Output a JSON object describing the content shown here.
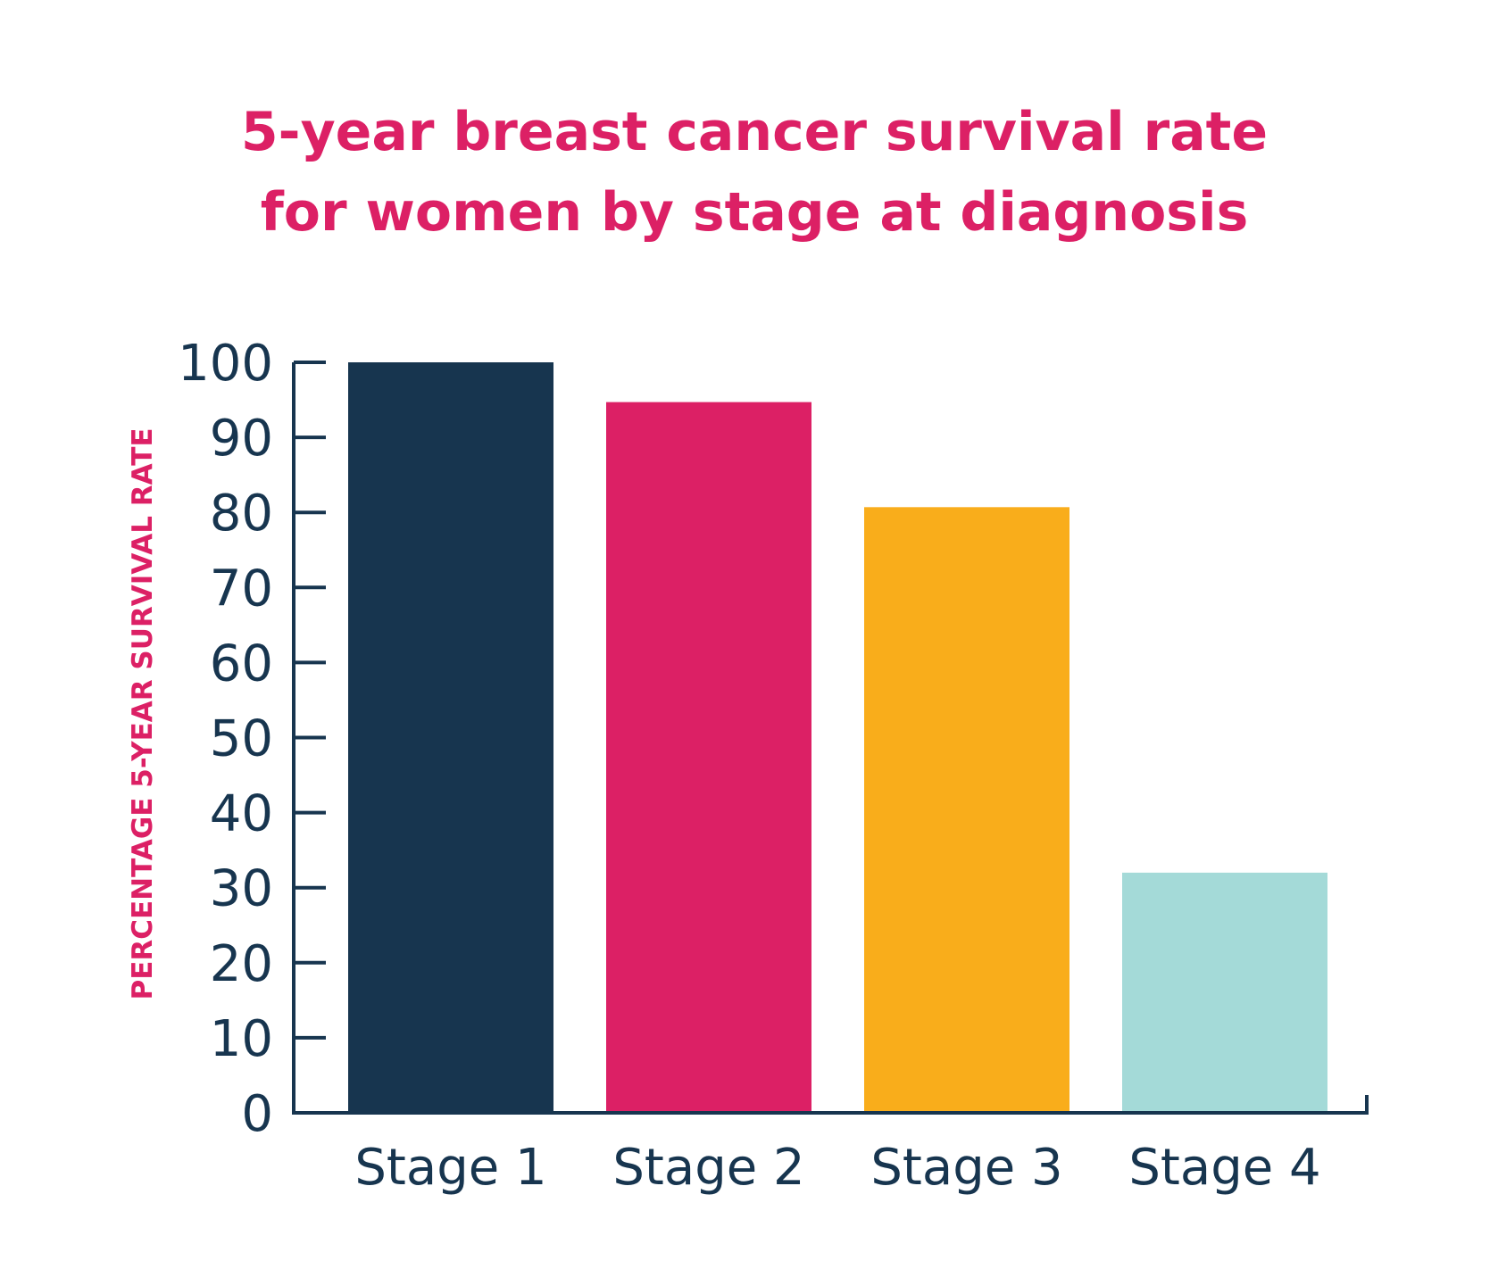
{
  "chart_data": {
    "type": "bar",
    "title_lines": [
      "5-year breast cancer survival rate",
      "for women by stage at diagnosis"
    ],
    "ylabel": "PERCENTAGE 5-YEAR SURVIVAL RATE",
    "xlabel": "",
    "categories": [
      "Stage 1",
      "Stage 2",
      "Stage 3",
      "Stage 4"
    ],
    "values": [
      100,
      94.7,
      80.7,
      32
    ],
    "ylim": [
      0,
      100
    ],
    "yticks": [
      0,
      10,
      20,
      30,
      40,
      50,
      60,
      70,
      80,
      90,
      100
    ],
    "grid": false,
    "legend": "none",
    "colors": {
      "title": "#DC2065",
      "ylabel": "#DC2065",
      "axis": "#17354F",
      "ticks": "#17354F",
      "bars": [
        "#17354F",
        "#DC2065",
        "#F9AD1B",
        "#A4DAD8"
      ]
    }
  }
}
